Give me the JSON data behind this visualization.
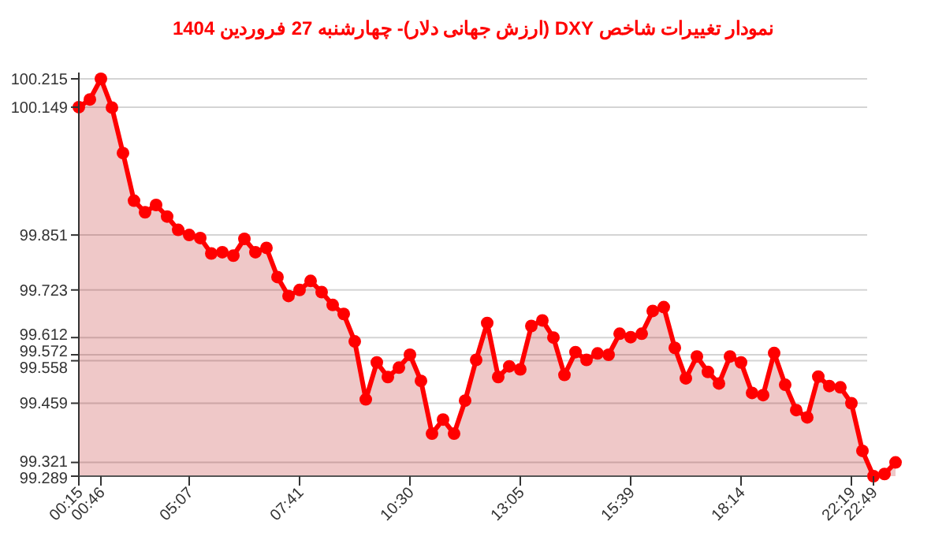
{
  "chart_data": {
    "type": "area",
    "title": "نمودار تغییرات شاخص DXY (ارزش جهانی دلار)-  چهارشنبه  27 فروردین 1404",
    "categories": [
      "00:15",
      null,
      "00:46",
      null,
      null,
      null,
      null,
      null,
      null,
      null,
      "05:07",
      null,
      null,
      null,
      null,
      null,
      null,
      null,
      null,
      null,
      "07:41",
      null,
      null,
      null,
      null,
      null,
      null,
      null,
      null,
      null,
      "10:30",
      null,
      null,
      null,
      null,
      null,
      null,
      null,
      null,
      null,
      "13:05",
      null,
      null,
      null,
      null,
      null,
      null,
      null,
      null,
      null,
      "15:39",
      null,
      null,
      null,
      null,
      null,
      null,
      null,
      null,
      null,
      "18:14",
      null,
      null,
      null,
      null,
      null,
      null,
      null,
      null,
      null,
      "22:19",
      null,
      "22:49",
      null,
      null
    ],
    "series": [
      {
        "color": "#ff0000",
        "values": [
          100.149,
          100.167,
          100.215,
          100.148,
          100.042,
          99.931,
          99.904,
          99.921,
          99.894,
          99.863,
          99.851,
          99.844,
          99.808,
          99.811,
          99.803,
          99.842,
          99.811,
          99.821,
          99.753,
          99.709,
          99.723,
          99.744,
          99.718,
          99.688,
          99.667,
          99.603,
          99.468,
          99.554,
          99.52,
          99.542,
          99.572,
          99.511,
          99.388,
          99.421,
          99.388,
          99.465,
          99.56,
          99.646,
          99.52,
          99.545,
          99.538,
          99.639,
          99.652,
          99.612,
          99.525,
          99.578,
          99.56,
          99.575,
          99.572,
          99.621,
          99.613,
          99.621,
          99.674,
          99.683,
          99.588,
          99.517,
          99.568,
          99.532,
          99.505,
          99.568,
          99.554,
          99.483,
          99.478,
          99.576,
          99.502,
          99.443,
          99.426,
          99.521,
          99.499,
          99.496,
          99.459,
          99.348,
          99.289,
          99.294,
          99.321
        ]
      }
    ],
    "ylim": [
      99.289,
      100.215
    ],
    "yticks": [
      99.289,
      99.321,
      99.459,
      99.558,
      99.572,
      99.612,
      99.723,
      99.851,
      100.149,
      100.215
    ],
    "grid": "y",
    "marker": "circle",
    "line_style": "solid"
  }
}
